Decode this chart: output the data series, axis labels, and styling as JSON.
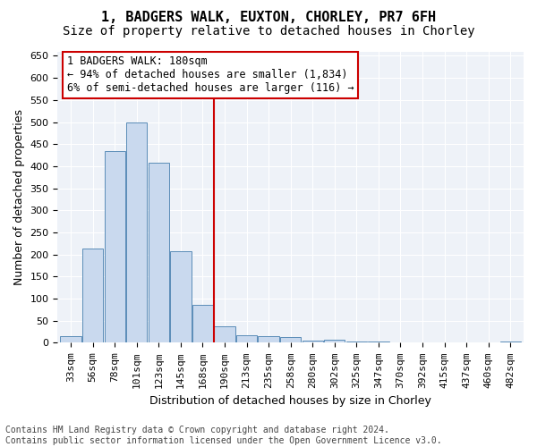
{
  "title1": "1, BADGERS WALK, EUXTON, CHORLEY, PR7 6FH",
  "title2": "Size of property relative to detached houses in Chorley",
  "xlabel": "Distribution of detached houses by size in Chorley",
  "ylabel": "Number of detached properties",
  "categories": [
    "33sqm",
    "56sqm",
    "78sqm",
    "101sqm",
    "123sqm",
    "145sqm",
    "168sqm",
    "190sqm",
    "213sqm",
    "235sqm",
    "258sqm",
    "280sqm",
    "302sqm",
    "325sqm",
    "347sqm",
    "370sqm",
    "392sqm",
    "415sqm",
    "437sqm",
    "460sqm",
    "482sqm"
  ],
  "values": [
    15,
    213,
    435,
    500,
    408,
    207,
    85,
    38,
    17,
    16,
    13,
    5,
    6,
    2,
    2,
    1,
    1,
    1,
    0,
    0,
    3
  ],
  "bar_color": "#c9d9ee",
  "bar_edge_color": "#5b8db8",
  "vline_index": 7,
  "vline_color": "#cc0000",
  "annotation_text": "1 BADGERS WALK: 180sqm\n← 94% of detached houses are smaller (1,834)\n6% of semi-detached houses are larger (116) →",
  "annotation_box_facecolor": "#ffffff",
  "annotation_box_edgecolor": "#cc0000",
  "ylim_max": 660,
  "yticks": [
    0,
    50,
    100,
    150,
    200,
    250,
    300,
    350,
    400,
    450,
    500,
    550,
    600,
    650
  ],
  "plot_bg_color": "#eef2f8",
  "footer_text": "Contains HM Land Registry data © Crown copyright and database right 2024.\nContains public sector information licensed under the Open Government Licence v3.0.",
  "title1_fontsize": 11,
  "title2_fontsize": 10,
  "xlabel_fontsize": 9,
  "ylabel_fontsize": 9,
  "tick_fontsize": 8,
  "annotation_fontsize": 8.5,
  "footer_fontsize": 7
}
